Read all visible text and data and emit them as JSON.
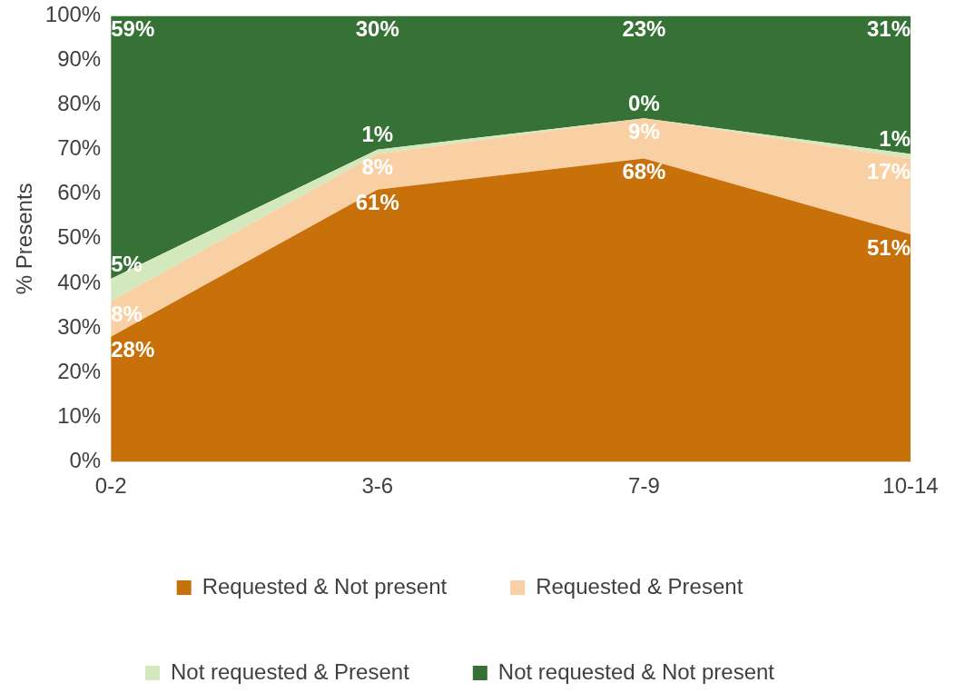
{
  "chart_data": {
    "type": "area",
    "stacked": true,
    "ylabel": "% Presents",
    "categories": [
      "0-2",
      "3-6",
      "7-9",
      "10-14"
    ],
    "ylim": [
      0,
      100
    ],
    "yticks": [
      {
        "value": 0,
        "label": "0%"
      },
      {
        "value": 10,
        "label": "10%"
      },
      {
        "value": 20,
        "label": "20%"
      },
      {
        "value": 30,
        "label": "30%"
      },
      {
        "value": 40,
        "label": "40%"
      },
      {
        "value": 50,
        "label": "50%"
      },
      {
        "value": 60,
        "label": "60%"
      },
      {
        "value": 70,
        "label": "70%"
      },
      {
        "value": 80,
        "label": "80%"
      },
      {
        "value": 90,
        "label": "90%"
      },
      {
        "value": 100,
        "label": "100%"
      }
    ],
    "legend": "bottom",
    "series": [
      {
        "name": "Requested & Not present",
        "color": "#c87009",
        "values": [
          28,
          61,
          68,
          51
        ],
        "value_labels": [
          "28%",
          "61%",
          "68%",
          "51%"
        ]
      },
      {
        "name": "Requested & Present",
        "color": "#f9cfa4",
        "values": [
          8,
          8,
          9,
          17
        ],
        "value_labels": [
          "8%",
          "8%",
          "9%",
          "17%"
        ]
      },
      {
        "name": "Not requested & Present",
        "color": "#d4e8bd",
        "values": [
          5,
          1,
          0,
          1
        ],
        "value_labels": [
          "5%",
          "1%",
          "0%",
          "1%"
        ]
      },
      {
        "name": "Not requested & Not present",
        "color": "#367235",
        "values": [
          59,
          30,
          23,
          31
        ],
        "value_labels": [
          "59%",
          "30%",
          "23%",
          "31%"
        ]
      }
    ]
  }
}
